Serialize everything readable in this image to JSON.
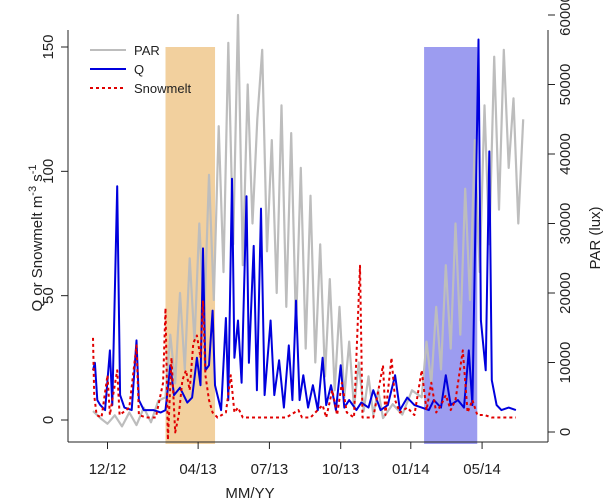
{
  "chart_data": {
    "type": "line",
    "xlabel": "MM/YY",
    "ylabel_left_main": "Q or Snowmelt m",
    "ylabel_left_sup1": "-3",
    "ylabel_left_mid": " s",
    "ylabel_left_sup2": "-1",
    "ylabel_right": "PAR (lux)",
    "x_domain_months": [
      0,
      18
    ],
    "x_ticks": [
      {
        "value": 0.6,
        "label": "12/12"
      },
      {
        "value": 4.35,
        "label": "04/13"
      },
      {
        "value": 7.3,
        "label": "07/13"
      },
      {
        "value": 10.25,
        "label": "10/13"
      },
      {
        "value": 13.15,
        "label": "01/14"
      },
      {
        "value": 16.1,
        "label": "05/14"
      }
    ],
    "ylim_left": [
      0,
      150
    ],
    "y_ticks_left": [
      0,
      50,
      100,
      150
    ],
    "ylim_right": [
      0,
      60000
    ],
    "y_ticks_right": [
      0,
      10000,
      20000,
      30000,
      40000,
      50000,
      60000
    ],
    "shaded_periods": [
      {
        "x_start": 3.0,
        "x_end": 5.05,
        "color": "#F2D09E"
      },
      {
        "x_start": 13.7,
        "x_end": 15.9,
        "color": "#9C9CF0"
      }
    ],
    "legend": {
      "position": "top-left",
      "entries": [
        {
          "name": "PAR",
          "color": "#BDBDBD",
          "style": "solid"
        },
        {
          "name": "Q",
          "color": "#0000DD",
          "style": "solid"
        },
        {
          "name": "Snowmelt",
          "color": "#E00000",
          "style": "dotted"
        }
      ]
    },
    "series": [
      {
        "name": "PAR",
        "axis": "right",
        "color": "#BDBDBD",
        "points": [
          [
            0,
            3000
          ],
          [
            0.3,
            2000
          ],
          [
            0.6,
            1200
          ],
          [
            0.9,
            2400
          ],
          [
            1.2,
            800
          ],
          [
            1.5,
            2800
          ],
          [
            1.8,
            1000
          ],
          [
            2.1,
            3500
          ],
          [
            2.4,
            1400
          ],
          [
            2.7,
            4500
          ],
          [
            3.0,
            5000
          ],
          [
            3.2,
            14000
          ],
          [
            3.4,
            7000
          ],
          [
            3.6,
            20000
          ],
          [
            3.8,
            9000
          ],
          [
            4.0,
            25000
          ],
          [
            4.2,
            13000
          ],
          [
            4.4,
            30000
          ],
          [
            4.6,
            16000
          ],
          [
            4.8,
            37000
          ],
          [
            5.0,
            19000
          ],
          [
            5.2,
            44000
          ],
          [
            5.4,
            23000
          ],
          [
            5.6,
            56000
          ],
          [
            5.8,
            27000
          ],
          [
            6.0,
            60000
          ],
          [
            6.2,
            24000
          ],
          [
            6.4,
            50000
          ],
          [
            6.6,
            30000
          ],
          [
            6.8,
            45000
          ],
          [
            7.0,
            55000
          ],
          [
            7.2,
            26000
          ],
          [
            7.4,
            42000
          ],
          [
            7.6,
            20000
          ],
          [
            7.8,
            47000
          ],
          [
            8.0,
            18000
          ],
          [
            8.2,
            43000
          ],
          [
            8.4,
            15000
          ],
          [
            8.6,
            38000
          ],
          [
            8.8,
            12000
          ],
          [
            9.0,
            34000
          ],
          [
            9.2,
            10000
          ],
          [
            9.4,
            27000
          ],
          [
            9.6,
            8000
          ],
          [
            9.8,
            22000
          ],
          [
            10.0,
            6000
          ],
          [
            10.2,
            18000
          ],
          [
            10.4,
            5000
          ],
          [
            10.6,
            13000
          ],
          [
            10.8,
            3500
          ],
          [
            11.0,
            10000
          ],
          [
            11.2,
            3000
          ],
          [
            11.4,
            8000
          ],
          [
            11.6,
            2500
          ],
          [
            11.8,
            6000
          ],
          [
            12.0,
            2000
          ],
          [
            12.4,
            4000
          ],
          [
            12.8,
            2500
          ],
          [
            13.2,
            6000
          ],
          [
            13.6,
            5000
          ],
          [
            13.8,
            13000
          ],
          [
            14.0,
            7000
          ],
          [
            14.2,
            18000
          ],
          [
            14.4,
            9000
          ],
          [
            14.6,
            24000
          ],
          [
            14.8,
            12000
          ],
          [
            15.0,
            30000
          ],
          [
            15.2,
            14000
          ],
          [
            15.4,
            35000
          ],
          [
            15.6,
            19000
          ],
          [
            15.8,
            42000
          ],
          [
            16.0,
            23000
          ],
          [
            16.2,
            47000
          ],
          [
            16.4,
            27000
          ],
          [
            16.6,
            54000
          ],
          [
            16.8,
            32000
          ],
          [
            17.0,
            55000
          ],
          [
            17.2,
            38000
          ],
          [
            17.4,
            48000
          ],
          [
            17.6,
            30000
          ],
          [
            17.8,
            45000
          ]
        ]
      },
      {
        "name": "Q",
        "axis": "left",
        "color": "#0000DD",
        "points": [
          [
            0,
            20
          ],
          [
            0.08,
            23
          ],
          [
            0.18,
            8
          ],
          [
            0.3,
            6
          ],
          [
            0.5,
            4
          ],
          [
            0.7,
            28
          ],
          [
            0.8,
            6
          ],
          [
            1.0,
            94
          ],
          [
            1.12,
            10
          ],
          [
            1.3,
            5
          ],
          [
            1.6,
            4
          ],
          [
            1.8,
            32
          ],
          [
            1.9,
            8
          ],
          [
            2.1,
            4
          ],
          [
            2.5,
            4
          ],
          [
            2.8,
            3
          ],
          [
            3.0,
            4
          ],
          [
            3.2,
            22
          ],
          [
            3.35,
            10
          ],
          [
            3.6,
            13
          ],
          [
            3.9,
            7
          ],
          [
            4.1,
            9
          ],
          [
            4.3,
            25
          ],
          [
            4.45,
            14
          ],
          [
            4.55,
            69
          ],
          [
            4.65,
            20
          ],
          [
            4.8,
            22
          ],
          [
            4.95,
            44
          ],
          [
            5.05,
            14
          ],
          [
            5.3,
            4
          ],
          [
            5.5,
            41
          ],
          [
            5.6,
            8
          ],
          [
            5.75,
            97
          ],
          [
            5.85,
            25
          ],
          [
            6.0,
            40
          ],
          [
            6.15,
            15
          ],
          [
            6.35,
            90
          ],
          [
            6.45,
            23
          ],
          [
            6.65,
            70
          ],
          [
            6.78,
            12
          ],
          [
            6.95,
            85
          ],
          [
            7.1,
            10
          ],
          [
            7.35,
            40
          ],
          [
            7.5,
            10
          ],
          [
            7.7,
            24
          ],
          [
            7.9,
            5
          ],
          [
            8.1,
            30
          ],
          [
            8.25,
            8
          ],
          [
            8.4,
            48
          ],
          [
            8.55,
            8
          ],
          [
            8.7,
            18
          ],
          [
            8.9,
            5
          ],
          [
            9.1,
            14
          ],
          [
            9.3,
            4
          ],
          [
            9.5,
            25
          ],
          [
            9.65,
            6
          ],
          [
            9.85,
            14
          ],
          [
            10.05,
            4
          ],
          [
            10.25,
            22
          ],
          [
            10.4,
            5
          ],
          [
            10.6,
            8
          ],
          [
            10.9,
            4
          ],
          [
            11.1,
            7
          ],
          [
            11.4,
            5
          ],
          [
            11.6,
            12
          ],
          [
            11.9,
            4
          ],
          [
            12.2,
            6
          ],
          [
            12.5,
            18
          ],
          [
            12.7,
            4
          ],
          [
            13.0,
            9
          ],
          [
            13.3,
            6
          ],
          [
            13.6,
            5
          ],
          [
            13.9,
            4
          ],
          [
            14.1,
            8
          ],
          [
            14.4,
            5
          ],
          [
            14.6,
            18
          ],
          [
            14.8,
            6
          ],
          [
            15.1,
            8
          ],
          [
            15.35,
            5
          ],
          [
            15.55,
            28
          ],
          [
            15.7,
            6
          ],
          [
            15.95,
            153
          ],
          [
            16.05,
            40
          ],
          [
            16.25,
            20
          ],
          [
            16.4,
            108
          ],
          [
            16.5,
            16
          ],
          [
            16.7,
            6
          ],
          [
            16.9,
            4
          ],
          [
            17.2,
            5
          ],
          [
            17.5,
            4
          ]
        ]
      },
      {
        "name": "Snowmelt",
        "axis": "left",
        "color": "#E00000",
        "points": [
          [
            0,
            33
          ],
          [
            0.05,
            10
          ],
          [
            0.15,
            2
          ],
          [
            0.35,
            1
          ],
          [
            0.6,
            18
          ],
          [
            0.7,
            2
          ],
          [
            1.0,
            20
          ],
          [
            1.1,
            2
          ],
          [
            1.5,
            5
          ],
          [
            1.8,
            30
          ],
          [
            1.9,
            2
          ],
          [
            2.2,
            1
          ],
          [
            2.6,
            1
          ],
          [
            2.9,
            15
          ],
          [
            3.0,
            45
          ],
          [
            3.1,
            -8
          ],
          [
            3.25,
            25
          ],
          [
            3.4,
            -5
          ],
          [
            3.55,
            2
          ],
          [
            3.7,
            16
          ],
          [
            3.85,
            20
          ],
          [
            4.0,
            12
          ],
          [
            4.15,
            31
          ],
          [
            4.3,
            34
          ],
          [
            4.45,
            25
          ],
          [
            4.55,
            48
          ],
          [
            4.65,
            18
          ],
          [
            4.8,
            8
          ],
          [
            4.95,
            3
          ],
          [
            5.15,
            1
          ],
          [
            5.5,
            3
          ],
          [
            5.7,
            18
          ],
          [
            5.85,
            3
          ],
          [
            6.0,
            5
          ],
          [
            6.2,
            1
          ],
          [
            6.5,
            1
          ],
          [
            7.0,
            1
          ],
          [
            8.0,
            1
          ],
          [
            8.5,
            4
          ],
          [
            8.65,
            1
          ],
          [
            9.0,
            1
          ],
          [
            9.5,
            6
          ],
          [
            9.65,
            1
          ],
          [
            9.9,
            12
          ],
          [
            10.1,
            2
          ],
          [
            10.3,
            15
          ],
          [
            10.5,
            3
          ],
          [
            10.8,
            1
          ],
          [
            11.05,
            62
          ],
          [
            11.15,
            1
          ],
          [
            11.6,
            1
          ],
          [
            12.0,
            22
          ],
          [
            12.1,
            2
          ],
          [
            12.35,
            25
          ],
          [
            12.5,
            8
          ],
          [
            12.7,
            3
          ],
          [
            13.0,
            5
          ],
          [
            13.3,
            2
          ],
          [
            13.6,
            20
          ],
          [
            13.8,
            4
          ],
          [
            14.0,
            15
          ],
          [
            14.2,
            3
          ],
          [
            14.4,
            6
          ],
          [
            14.6,
            10
          ],
          [
            14.8,
            4
          ],
          [
            15.0,
            8
          ],
          [
            15.3,
            28
          ],
          [
            15.5,
            3
          ],
          [
            15.7,
            8
          ],
          [
            15.9,
            2
          ],
          [
            16.2,
            2
          ],
          [
            16.5,
            1
          ],
          [
            17.0,
            1
          ],
          [
            17.5,
            1
          ]
        ]
      }
    ]
  }
}
